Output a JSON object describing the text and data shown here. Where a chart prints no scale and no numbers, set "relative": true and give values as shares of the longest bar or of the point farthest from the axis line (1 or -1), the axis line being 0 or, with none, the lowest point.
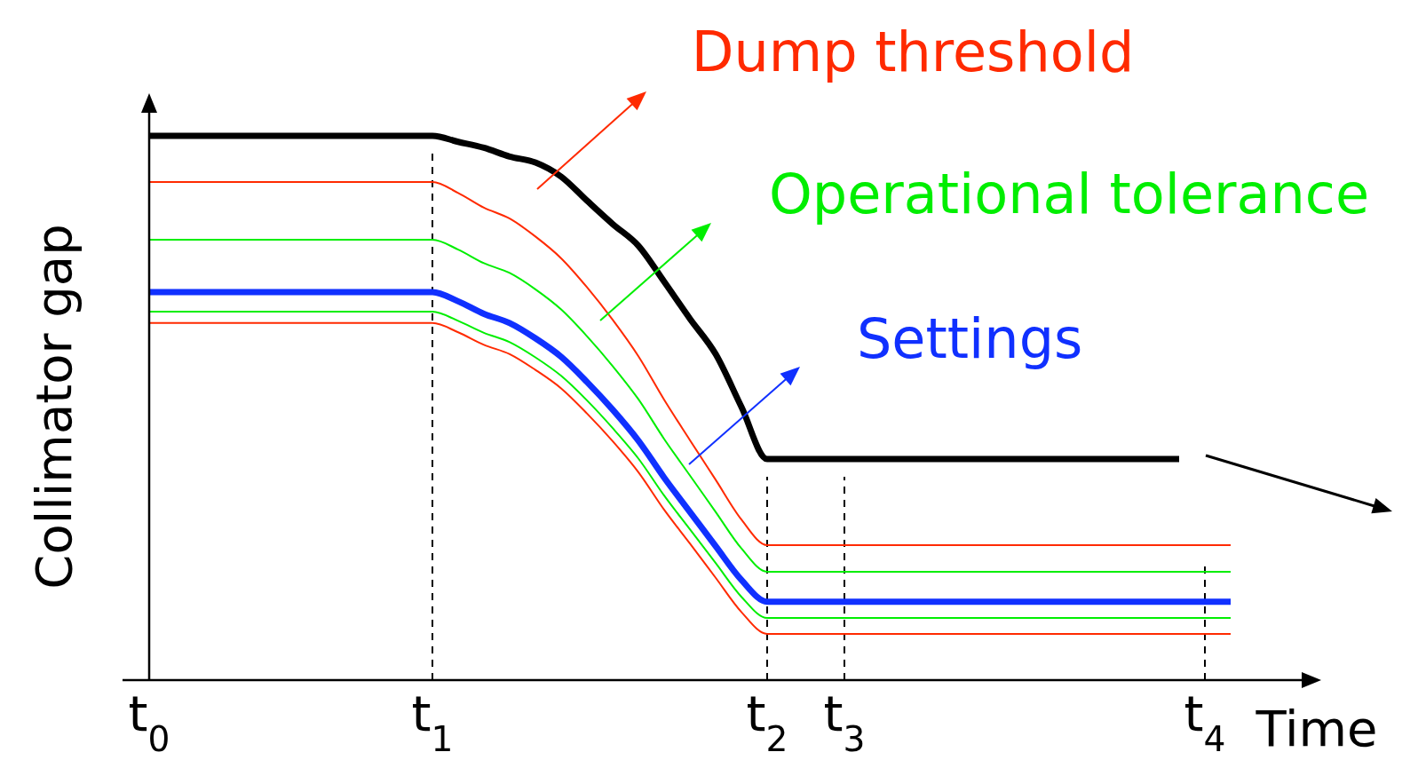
{
  "chart_data": {
    "type": "line",
    "relative": true,
    "xlabel": "Time",
    "ylabel": "Collimator gap",
    "categories": [
      "t$_{0}$",
      null,
      null,
      null,
      null,
      null,
      null,
      null,
      null,
      null,
      null,
      "t$_{1}$",
      null,
      null,
      null,
      null,
      null,
      null,
      null,
      null,
      null,
      null,
      null,
      null,
      "t$_{2}$",
      null,
      null,
      "t$_{3}$",
      null,
      null,
      null,
      null,
      null,
      null,
      null,
      null,
      null,
      null,
      null,
      null,
      null,
      "t$_{4}$",
      null
    ],
    "legend": "top right",
    "ref_lines": [
      {
        "axis": "x",
        "value": "t$_{1}$",
        "color": "#000000",
        "line_style": "dashed"
      },
      {
        "axis": "x",
        "value": "t$_{2}$",
        "color": "#000000",
        "line_style": "dashed"
      },
      {
        "axis": "x",
        "value": "t$_{3}$",
        "color": "#000000",
        "line_style": "dashed"
      },
      {
        "axis": "x",
        "value": "t$_{4}$",
        "color": "#000000",
        "line_style": "dashed"
      }
    ],
    "grid": false,
    "marker": "none",
    "line_style": "solid",
    "series": [
      {
        "color": "#000000",
        "values": [
          1,
          1,
          1,
          1,
          1,
          1,
          1,
          1,
          1,
          1,
          1,
          1,
          0.989,
          0.978,
          0.962,
          0.951,
          0.925,
          0.881,
          0.838,
          0.798,
          0.732,
          0.664,
          0.599,
          0.502,
          0.406,
          0.406,
          0.406,
          0.406,
          0.406,
          0.406,
          0.406,
          0.406,
          0.406,
          0.406,
          0.406,
          0.406,
          0.406,
          0.406,
          0.406,
          0.406,
          0.406,
          null,
          null
        ]
      },
      {
        "name": "Dump threshold",
        "color": "#ff2a00",
        "values": [
          0.915,
          0.915,
          0.915,
          0.915,
          0.915,
          0.915,
          0.915,
          0.915,
          0.915,
          0.915,
          0.915,
          0.915,
          0.895,
          0.868,
          0.848,
          0.815,
          0.775,
          0.722,
          0.662,
          0.595,
          0.515,
          0.441,
          0.368,
          0.295,
          0.248,
          0.248,
          0.248,
          0.248,
          0.248,
          0.248,
          0.248,
          0.248,
          0.248,
          0.248,
          0.248,
          0.248,
          0.248,
          0.248,
          0.248,
          0.248,
          0.248,
          0.248,
          0.248
        ]
      },
      {
        "name": "Operational tolerance",
        "color": "#00ee00",
        "values": [
          0.809,
          0.809,
          0.809,
          0.809,
          0.809,
          0.809,
          0.809,
          0.809,
          0.809,
          0.809,
          0.809,
          0.809,
          0.791,
          0.766,
          0.748,
          0.718,
          0.681,
          0.632,
          0.577,
          0.516,
          0.443,
          0.376,
          0.309,
          0.242,
          0.199,
          0.199,
          0.199,
          0.199,
          0.199,
          0.199,
          0.199,
          0.199,
          0.199,
          0.199,
          0.199,
          0.199,
          0.199,
          0.199,
          0.199,
          0.199,
          0.199,
          0.199,
          0.199
        ]
      },
      {
        "name": "Settings",
        "color": "#1030ff",
        "values": [
          0.713,
          0.713,
          0.713,
          0.713,
          0.713,
          0.713,
          0.713,
          0.713,
          0.713,
          0.713,
          0.713,
          0.713,
          0.696,
          0.673,
          0.656,
          0.628,
          0.594,
          0.548,
          0.497,
          0.44,
          0.372,
          0.309,
          0.246,
          0.184,
          0.144,
          0.144,
          0.144,
          0.144,
          0.144,
          0.144,
          0.144,
          0.144,
          0.144,
          0.144,
          0.144,
          0.144,
          0.144,
          0.144,
          0.144,
          0.144,
          0.144,
          0.144,
          0.144
        ]
      },
      {
        "color": "#00ee00",
        "values": [
          0.677,
          0.677,
          0.677,
          0.677,
          0.677,
          0.677,
          0.677,
          0.677,
          0.677,
          0.677,
          0.677,
          0.677,
          0.66,
          0.638,
          0.621,
          0.593,
          0.559,
          0.514,
          0.463,
          0.407,
          0.339,
          0.277,
          0.215,
          0.153,
          0.114,
          0.114,
          0.114,
          0.114,
          0.114,
          0.114,
          0.114,
          0.114,
          0.114,
          0.114,
          0.114,
          0.114,
          0.114,
          0.114,
          0.114,
          0.114,
          0.114,
          0.114,
          0.114
        ]
      },
      {
        "color": "#ff2a00",
        "values": [
          0.656,
          0.656,
          0.656,
          0.656,
          0.656,
          0.656,
          0.656,
          0.656,
          0.656,
          0.656,
          0.656,
          0.656,
          0.639,
          0.616,
          0.599,
          0.57,
          0.536,
          0.49,
          0.439,
          0.382,
          0.313,
          0.251,
          0.188,
          0.125,
          0.085,
          0.085,
          0.085,
          0.085,
          0.085,
          0.085,
          0.085,
          0.085,
          0.085,
          0.085,
          0.085,
          0.085,
          0.085,
          0.085,
          0.085,
          0.085,
          0.085,
          0.085,
          0.085
        ]
      }
    ]
  }
}
